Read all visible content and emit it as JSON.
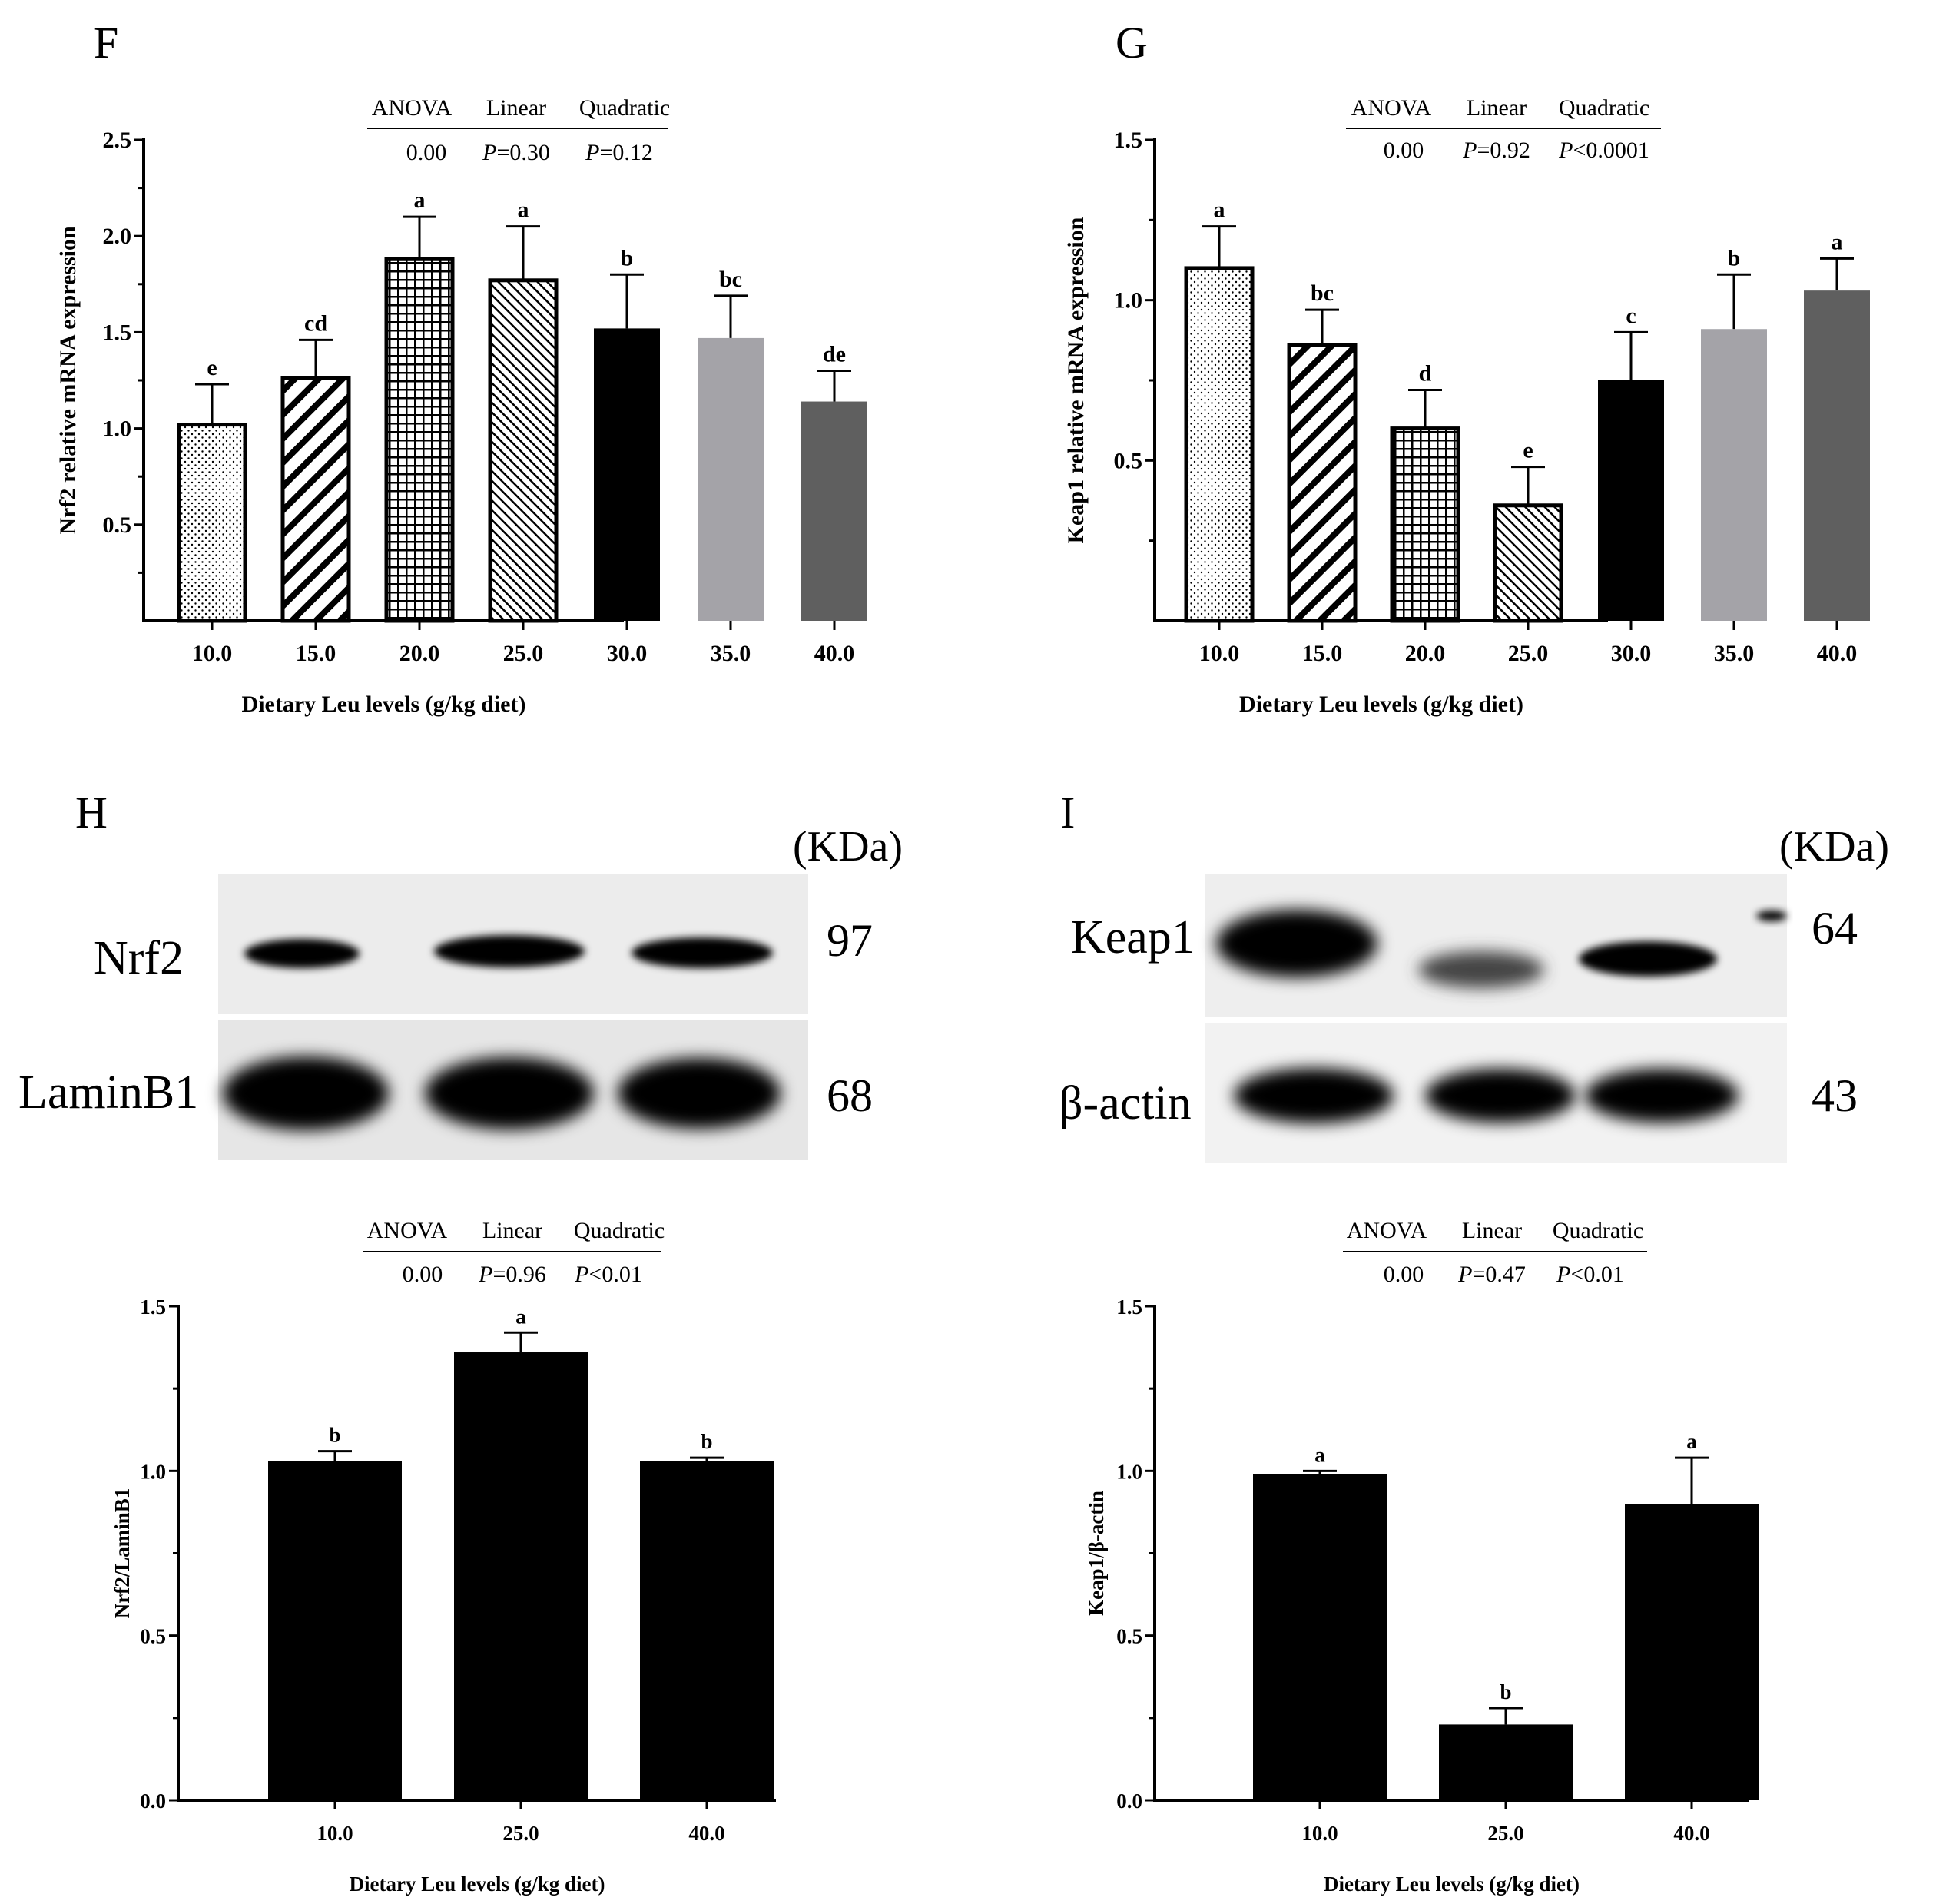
{
  "panels": {
    "F": {
      "letter": "F",
      "stats": {
        "headers": [
          "ANOVA",
          "Linear",
          "Quadratic"
        ],
        "anova": "0.00",
        "linear": "=0.30",
        "quadratic": "=0.12"
      }
    },
    "G": {
      "letter": "G",
      "stats": {
        "headers": [
          "ANOVA",
          "Linear",
          "Quadratic"
        ],
        "anova": "0.00",
        "linear": "=0.92",
        "quadratic": "<0.0001"
      }
    },
    "H": {
      "letter": "H",
      "kda": "(KDa)",
      "blot_labels": [
        "Nrf2",
        "LaminB1"
      ],
      "blot_sizes": [
        "97",
        "68"
      ],
      "stats": {
        "headers": [
          "ANOVA",
          "Linear",
          "Quadratic"
        ],
        "anova": "0.00",
        "linear": "=0.96",
        "quadratic": "<0.01"
      }
    },
    "I": {
      "letter": "I",
      "kda": "(KDa)",
      "blot_labels": [
        "Keap1",
        "β-actin"
      ],
      "blot_sizes": [
        "64",
        "43"
      ],
      "stats": {
        "headers": [
          "ANOVA",
          "Linear",
          "Quadratic"
        ],
        "anova": "0.00",
        "linear": "=0.47",
        "quadratic": "<0.01"
      }
    }
  },
  "p_letter": "P",
  "colors": {
    "black": "#000000",
    "light_gray": "#a4a3a8",
    "dark_gray": "#5f5f5f",
    "blot_bg": "#ececec"
  },
  "chart_data": [
    {
      "id": "F",
      "type": "bar",
      "categories": [
        "10.0",
        "15.0",
        "20.0",
        "25.0",
        "30.0",
        "35.0",
        "40.0"
      ],
      "values": [
        1.02,
        1.26,
        1.88,
        1.77,
        1.52,
        1.47,
        1.14
      ],
      "errors": [
        0.21,
        0.2,
        0.22,
        0.28,
        0.28,
        0.22,
        0.16
      ],
      "letters": [
        "e",
        "cd",
        "a",
        "a",
        "b",
        "bc",
        "de"
      ],
      "fills": [
        "dots",
        "diag-thick",
        "grid",
        "diag-thin",
        "black",
        "light-gray",
        "dark-gray"
      ],
      "ylim": [
        0.0,
        2.5
      ],
      "yticks": [
        0.5,
        1.0,
        1.5,
        2.0,
        2.5
      ],
      "ytick_labels": [
        "0.5",
        "1.0",
        "1.5",
        "2.0",
        "2.5"
      ],
      "xlabel": "Dietary Leu levels (g/kg diet)",
      "ylabel": "Nrf2 relative mRNA expression"
    },
    {
      "id": "G",
      "type": "bar",
      "categories": [
        "10.0",
        "15.0",
        "20.0",
        "25.0",
        "30.0",
        "35.0",
        "40.0"
      ],
      "values": [
        1.1,
        0.86,
        0.6,
        0.36,
        0.75,
        0.91,
        1.03
      ],
      "errors": [
        0.13,
        0.11,
        0.12,
        0.12,
        0.15,
        0.17,
        0.1
      ],
      "letters": [
        "a",
        "bc",
        "d",
        "e",
        "c",
        "b",
        "a"
      ],
      "fills": [
        "dots",
        "diag-thick",
        "grid",
        "diag-thin",
        "black",
        "light-gray",
        "dark-gray"
      ],
      "ylim": [
        0.0,
        1.5
      ],
      "yticks": [
        0.5,
        1.0,
        1.5
      ],
      "ytick_labels": [
        "0.5",
        "1.0",
        "1.5"
      ],
      "xlabel": "Dietary Leu levels (g/kg diet)",
      "ylabel": "Keap1 relative mRNA expression"
    },
    {
      "id": "H",
      "type": "bar",
      "categories": [
        "10.0",
        "25.0",
        "40.0"
      ],
      "values": [
        1.03,
        1.36,
        1.03
      ],
      "errors": [
        0.03,
        0.06,
        0.01
      ],
      "letters": [
        "b",
        "a",
        "b"
      ],
      "fills": [
        "black",
        "black",
        "black"
      ],
      "ylim": [
        0.0,
        1.5
      ],
      "yticks": [
        0.0,
        0.5,
        1.0,
        1.5
      ],
      "ytick_labels": [
        "0.0",
        "0.5",
        "1.0",
        "1.5"
      ],
      "xlabel": "Dietary Leu levels (g/kg diet)",
      "ylabel": "Nrf2/LaminB1"
    },
    {
      "id": "I",
      "type": "bar",
      "categories": [
        "10.0",
        "25.0",
        "40.0"
      ],
      "values": [
        0.99,
        0.23,
        0.9
      ],
      "errors": [
        0.01,
        0.05,
        0.14
      ],
      "letters": [
        "a",
        "b",
        "a"
      ],
      "fills": [
        "black",
        "black",
        "black"
      ],
      "ylim": [
        0.0,
        1.5
      ],
      "yticks": [
        0.0,
        0.5,
        1.0,
        1.5
      ],
      "ytick_labels": [
        "0.0",
        "0.5",
        "1.0",
        "1.5"
      ],
      "xlabel": "Dietary Leu levels (g/kg diet)",
      "ylabel": "Keap1/β-actin"
    }
  ]
}
